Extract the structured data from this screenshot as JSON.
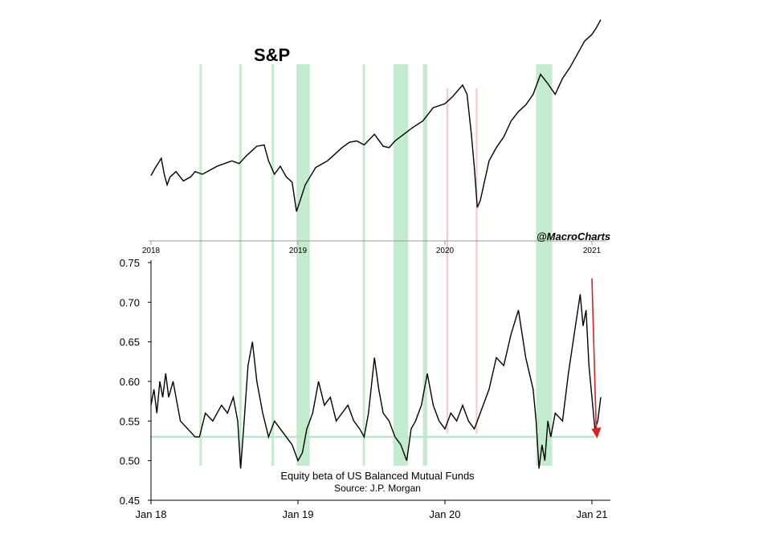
{
  "handle": "@MacroCharts",
  "chart_data": [
    {
      "type": "line",
      "title": "S&P",
      "x_tick_labels": [
        "2018",
        "2019",
        "2020",
        "2021"
      ],
      "x_range": [
        2018.0,
        2021.08
      ],
      "shaded_periods_green": [
        [
          2018.33,
          2018.34
        ],
        [
          2018.6,
          2018.61
        ],
        [
          2018.82,
          2018.83
        ],
        [
          2018.99,
          2019.08
        ],
        [
          2019.44,
          2019.45
        ],
        [
          2019.65,
          2019.75
        ],
        [
          2019.85,
          2019.88
        ],
        [
          2020.62,
          2020.73
        ]
      ],
      "shaded_periods_red": [
        [
          2020.01,
          2020.02
        ],
        [
          2020.21,
          2020.22
        ]
      ],
      "series": [
        {
          "x": [
            2018.0,
            2018.03,
            2018.07,
            2018.09,
            2018.11,
            2018.13,
            2018.17,
            2018.22,
            2018.27,
            2018.3,
            2018.35,
            2018.4,
            2018.45,
            2018.5,
            2018.55,
            2018.6,
            2018.65,
            2018.72,
            2018.77,
            2018.8,
            2018.84,
            2018.88,
            2018.92,
            2018.96,
            2018.99,
            2019.05,
            2019.12,
            2019.2,
            2019.3,
            2019.35,
            2019.4,
            2019.45,
            2019.52,
            2019.58,
            2019.62,
            2019.66,
            2019.72,
            2019.78,
            2019.85,
            2019.92,
            2020.0,
            2020.05,
            2020.12,
            2020.15,
            2020.18,
            2020.2,
            2020.22,
            2020.24,
            2020.27,
            2020.3,
            2020.35,
            2020.4,
            2020.45,
            2020.5,
            2020.55,
            2020.6,
            2020.65,
            2020.7,
            2020.75,
            2020.8,
            2020.85,
            2020.9,
            2020.95,
            2021.0,
            2021.03,
            2021.06
          ],
          "y": [
            2690,
            2750,
            2820,
            2700,
            2620,
            2680,
            2720,
            2650,
            2680,
            2720,
            2700,
            2730,
            2760,
            2780,
            2800,
            2780,
            2840,
            2910,
            2920,
            2800,
            2700,
            2760,
            2680,
            2640,
            2420,
            2620,
            2750,
            2800,
            2900,
            2940,
            2950,
            2920,
            3000,
            2910,
            2900,
            2950,
            3000,
            3050,
            3100,
            3200,
            3230,
            3280,
            3370,
            3300,
            3000,
            2750,
            2450,
            2500,
            2650,
            2800,
            2900,
            2980,
            3100,
            3170,
            3220,
            3300,
            3450,
            3380,
            3300,
            3420,
            3500,
            3600,
            3700,
            3750,
            3800,
            3860
          ]
        }
      ]
    },
    {
      "type": "line",
      "xlabel": "",
      "ylabel": "",
      "x_tick_labels": [
        "Jan 18",
        "Jan 19",
        "Jan 20",
        "Jan 21"
      ],
      "y_tick_labels": [
        "0.75",
        "0.70",
        "0.65",
        "0.60",
        "0.55",
        "0.50",
        "0.45"
      ],
      "ylim": [
        0.45,
        0.75
      ],
      "x_range": [
        2018.0,
        2021.08
      ],
      "horizontal_reference_line": 0.53,
      "arrow_annotation": {
        "from": [
          2021.0,
          0.73
        ],
        "to": [
          2021.15,
          0.53
        ],
        "color": "#e02020"
      },
      "annotation_line1": "Equity beta of US Balanced Mutual Funds",
      "annotation_line2": "Source: J.P. Morgan",
      "series": [
        {
          "x": [
            2018.0,
            2018.02,
            2018.04,
            2018.06,
            2018.08,
            2018.1,
            2018.12,
            2018.15,
            2018.2,
            2018.25,
            2018.3,
            2018.33,
            2018.37,
            2018.42,
            2018.48,
            2018.52,
            2018.56,
            2018.59,
            2018.61,
            2018.63,
            2018.66,
            2018.69,
            2018.72,
            2018.76,
            2018.8,
            2018.84,
            2018.88,
            2018.92,
            2018.96,
            2019.0,
            2019.03,
            2019.06,
            2019.1,
            2019.14,
            2019.18,
            2019.22,
            2019.26,
            2019.3,
            2019.34,
            2019.38,
            2019.42,
            2019.45,
            2019.48,
            2019.52,
            2019.55,
            2019.58,
            2019.62,
            2019.66,
            2019.7,
            2019.74,
            2019.77,
            2019.8,
            2019.84,
            2019.88,
            2019.92,
            2019.96,
            2020.0,
            2020.04,
            2020.08,
            2020.12,
            2020.16,
            2020.2,
            2020.22,
            2020.26,
            2020.3,
            2020.35,
            2020.4,
            2020.45,
            2020.5,
            2020.55,
            2020.6,
            2020.62,
            2020.64,
            2020.66,
            2020.68,
            2020.7,
            2020.72,
            2020.75,
            2020.8,
            2020.84,
            2020.88,
            2020.92,
            2020.94,
            2020.96,
            2020.98,
            2021.0,
            2021.02,
            2021.04,
            2021.06
          ],
          "y": [
            0.57,
            0.59,
            0.56,
            0.6,
            0.58,
            0.61,
            0.58,
            0.6,
            0.55,
            0.54,
            0.53,
            0.53,
            0.56,
            0.55,
            0.57,
            0.56,
            0.58,
            0.55,
            0.49,
            0.54,
            0.62,
            0.65,
            0.6,
            0.56,
            0.53,
            0.55,
            0.54,
            0.53,
            0.52,
            0.5,
            0.51,
            0.54,
            0.56,
            0.6,
            0.57,
            0.58,
            0.55,
            0.56,
            0.57,
            0.55,
            0.54,
            0.53,
            0.56,
            0.63,
            0.59,
            0.56,
            0.55,
            0.53,
            0.52,
            0.5,
            0.54,
            0.55,
            0.57,
            0.61,
            0.57,
            0.55,
            0.54,
            0.56,
            0.55,
            0.57,
            0.55,
            0.54,
            0.55,
            0.57,
            0.59,
            0.63,
            0.62,
            0.66,
            0.69,
            0.63,
            0.59,
            0.55,
            0.49,
            0.52,
            0.5,
            0.55,
            0.53,
            0.56,
            0.55,
            0.61,
            0.66,
            0.71,
            0.67,
            0.69,
            0.62,
            0.58,
            0.54,
            0.55,
            0.58
          ]
        }
      ]
    }
  ]
}
